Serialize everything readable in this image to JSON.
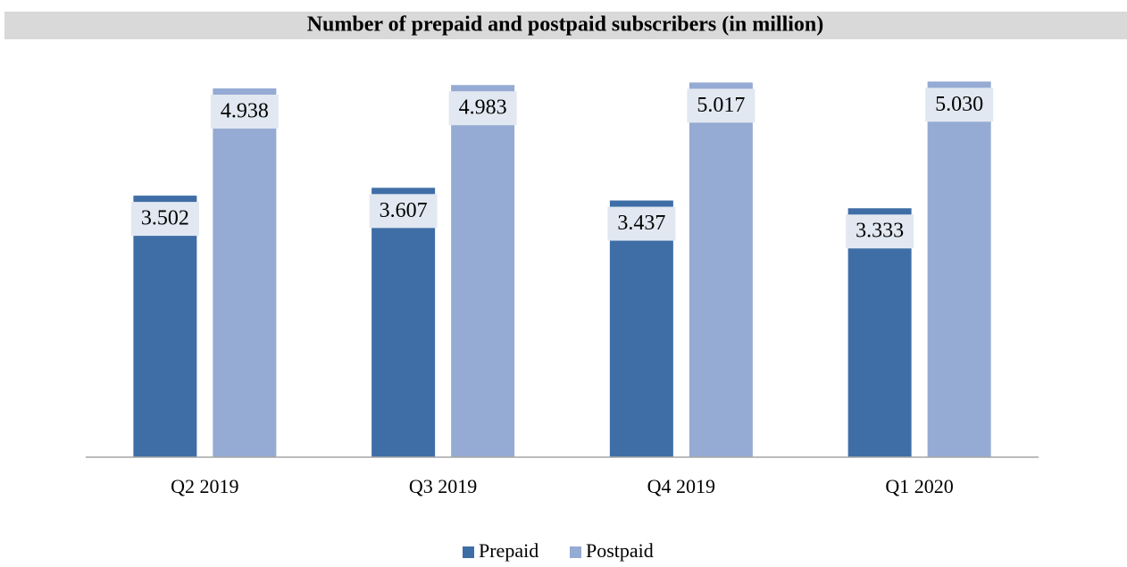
{
  "chart_data": {
    "type": "bar",
    "title": "Number of prepaid and postpaid subscribers (in million)",
    "categories": [
      "Q2 2019",
      "Q3 2019",
      "Q4 2019",
      "Q1 2020"
    ],
    "series": [
      {
        "name": "Prepaid",
        "color": "#3f6ea6",
        "values": [
          3.502,
          3.607,
          3.437,
          3.333
        ],
        "value_labels": [
          "3.502",
          "3.607",
          "3.437",
          "3.333"
        ]
      },
      {
        "name": "Postpaid",
        "color": "#95abd3",
        "values": [
          4.938,
          4.983,
          5.017,
          5.03
        ],
        "value_labels": [
          "4.938",
          "4.983",
          "5.017",
          "5.030"
        ]
      }
    ],
    "ylim": [
      0,
      5.5
    ],
    "legend": "bottom"
  }
}
